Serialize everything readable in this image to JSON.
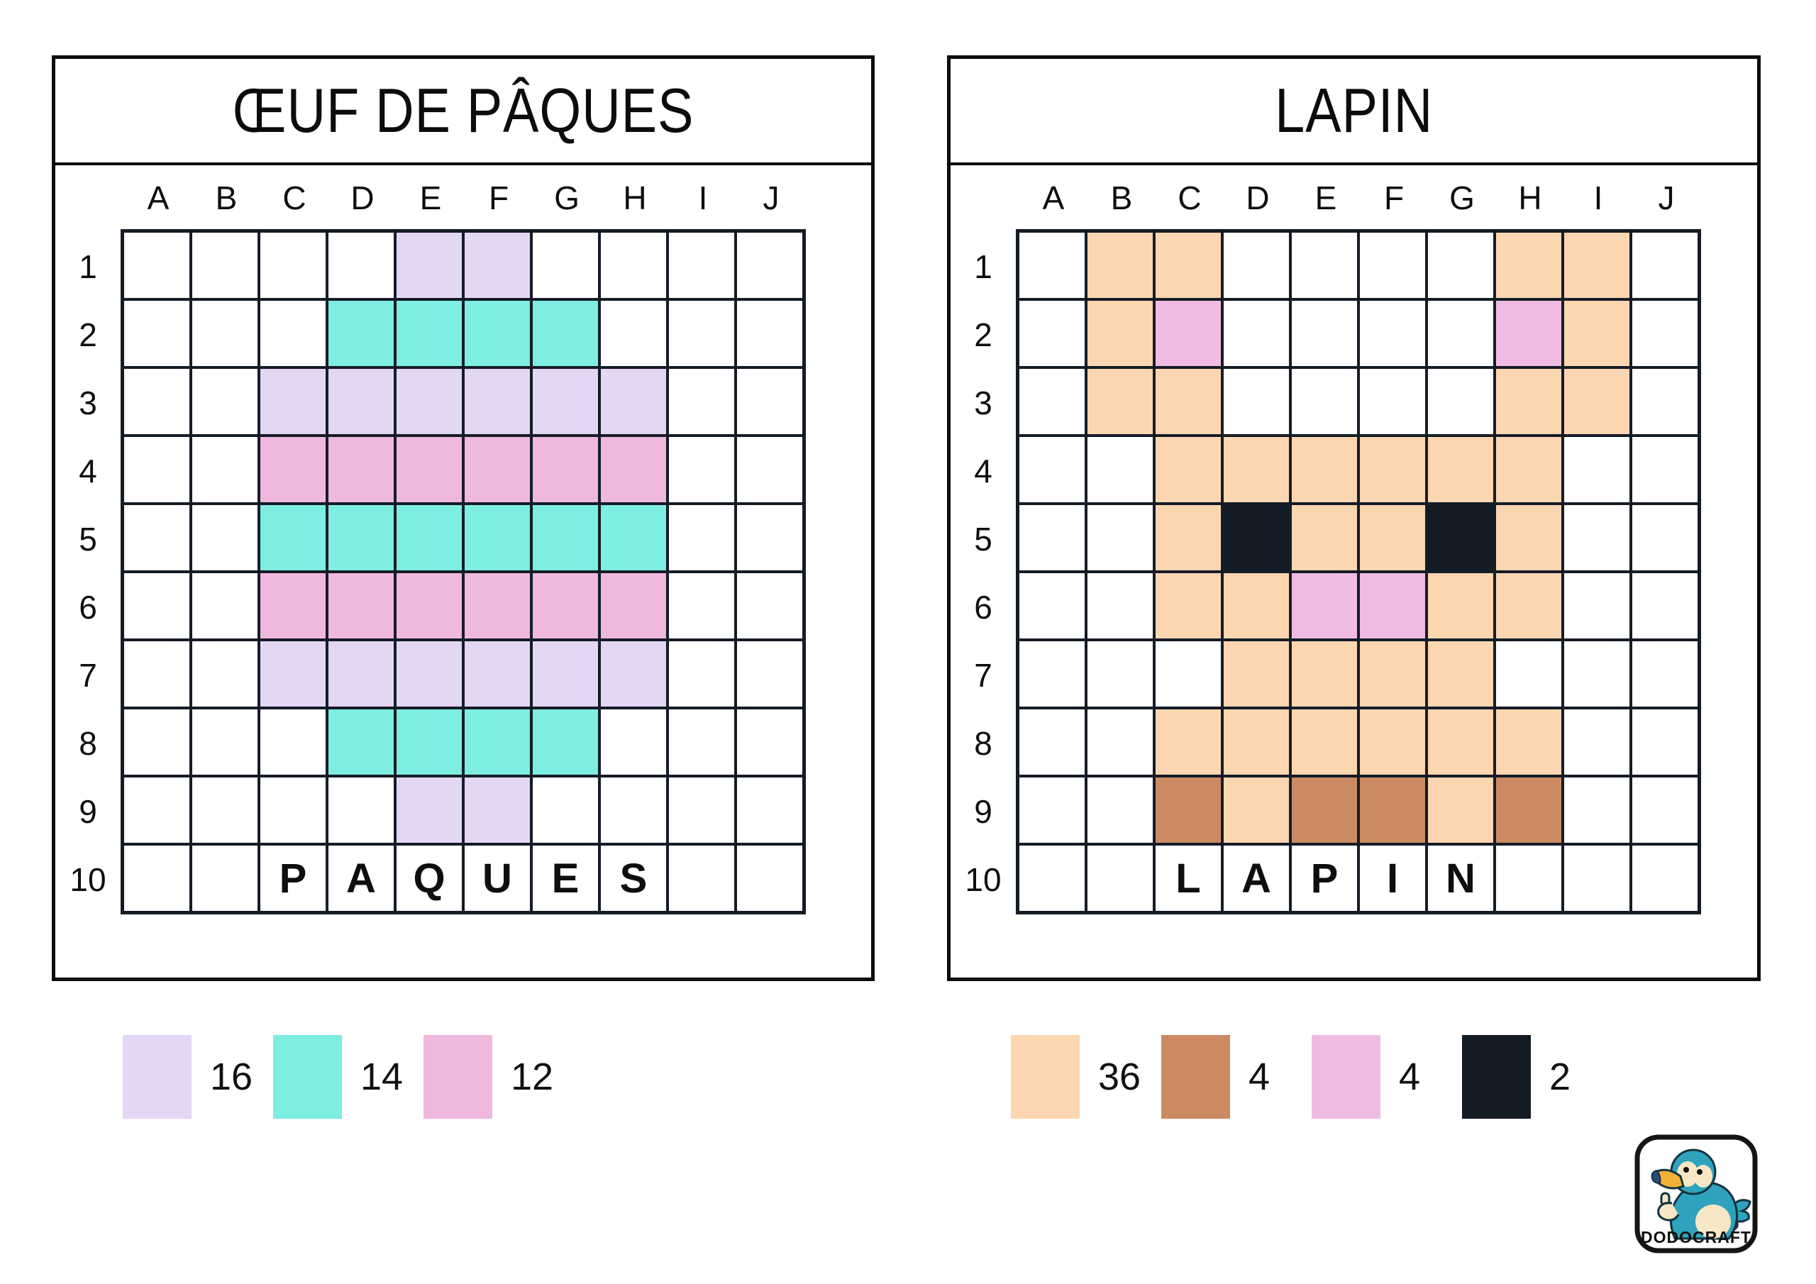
{
  "colors": {
    "lavender": "#E4D7F3",
    "turquoise": "#7EEDE2",
    "rose": "#EFB8DD",
    "peach": "#FCD6B1",
    "brown": "#CB8A62",
    "pink": "#F0BBE3",
    "black": "#131B25"
  },
  "panels": [
    {
      "title": "ŒUF DE PÂQUES",
      "columns": [
        "A",
        "B",
        "C",
        "D",
        "E",
        "F",
        "G",
        "H",
        "I",
        "J"
      ],
      "rows": [
        "1",
        "2",
        "3",
        "4",
        "5",
        "6",
        "7",
        "8",
        "9",
        "10"
      ],
      "cells": {
        "lavender": [
          "E1",
          "F1",
          "C3",
          "D3",
          "E3",
          "F3",
          "G3",
          "H3",
          "C7",
          "D7",
          "E7",
          "F7",
          "G7",
          "H7",
          "E9",
          "F9"
        ],
        "turquoise": [
          "D2",
          "E2",
          "F2",
          "G2",
          "C5",
          "D5",
          "E5",
          "F5",
          "G5",
          "H5",
          "D8",
          "E8",
          "F8",
          "G8"
        ],
        "rose": [
          "C4",
          "D4",
          "E4",
          "F4",
          "G4",
          "H4",
          "C6",
          "D6",
          "E6",
          "F6",
          "G6",
          "H6"
        ]
      },
      "letters": {
        "C10": "P",
        "D10": "A",
        "E10": "Q",
        "F10": "U",
        "G10": "E",
        "H10": "S"
      },
      "legend": [
        {
          "color": "lavender",
          "count": "16"
        },
        {
          "color": "turquoise",
          "count": "14"
        },
        {
          "color": "rose",
          "count": "12"
        }
      ]
    },
    {
      "title": "LAPIN",
      "columns": [
        "A",
        "B",
        "C",
        "D",
        "E",
        "F",
        "G",
        "H",
        "I",
        "J"
      ],
      "rows": [
        "1",
        "2",
        "3",
        "4",
        "5",
        "6",
        "7",
        "8",
        "9",
        "10"
      ],
      "cells": {
        "peach": [
          "B1",
          "C1",
          "H1",
          "I1",
          "B2",
          "I2",
          "B3",
          "C3",
          "H3",
          "I3",
          "C4",
          "D4",
          "E4",
          "F4",
          "G4",
          "H4",
          "C5",
          "E5",
          "F5",
          "H5",
          "C6",
          "D6",
          "G6",
          "H6",
          "D7",
          "E7",
          "F7",
          "G7",
          "C8",
          "D8",
          "E8",
          "F8",
          "G8",
          "H8",
          "D9",
          "G9"
        ],
        "pink": [
          "C2",
          "H2",
          "E6",
          "F6"
        ],
        "black": [
          "D5",
          "G5"
        ],
        "brown": [
          "C9",
          "E9",
          "F9",
          "H9"
        ]
      },
      "letters": {
        "C10": "L",
        "D10": "A",
        "E10": "P",
        "F10": "I",
        "G10": "N"
      },
      "legend": [
        {
          "color": "peach",
          "count": "36"
        },
        {
          "color": "brown",
          "count": "4"
        },
        {
          "color": "pink",
          "count": "4"
        },
        {
          "color": "black",
          "count": "2"
        }
      ]
    }
  ],
  "logo": {
    "text": "DODOCRAFT"
  }
}
